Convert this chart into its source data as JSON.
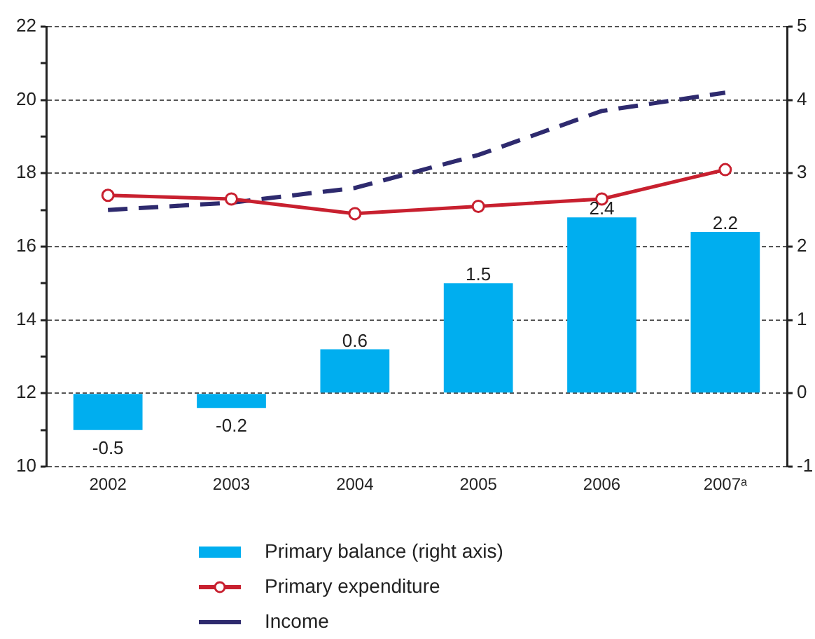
{
  "chart_data": {
    "type": "bar",
    "categories": [
      "2002",
      "2003",
      "2004",
      "2005",
      "2006",
      "2007ᵃ"
    ],
    "series": [
      {
        "name": "Primary balance (right axis)",
        "axis": "y2",
        "color": "#00aeef",
        "values": [
          -0.5,
          -0.2,
          0.6,
          1.5,
          2.4,
          2.2
        ],
        "value_labels": [
          "-0.5",
          "-0.2",
          "0.6",
          "1.5",
          "2.4",
          "2.2"
        ]
      },
      {
        "name": "Primary expenditure",
        "type": "line",
        "color": "#c8202f",
        "marker": "circle",
        "line_style": "solid",
        "values": [
          17.4,
          17.3,
          16.9,
          17.1,
          17.3,
          18.1
        ]
      },
      {
        "name": "Income",
        "type": "line",
        "color": "#2e2a6e",
        "marker": "none",
        "line_style": "dashed",
        "values": [
          17.0,
          17.2,
          17.6,
          18.5,
          19.7,
          20.2
        ]
      }
    ],
    "ylim": [
      10,
      22
    ],
    "yticks": [
      10,
      {
        "value": 11,
        "label": null
      },
      12,
      {
        "value": 13,
        "label": null
      },
      14,
      {
        "value": 15,
        "label": null
      },
      16,
      {
        "value": 17,
        "label": null
      },
      18,
      {
        "value": 19,
        "label": null
      },
      20,
      {
        "value": 21,
        "label": null
      },
      22
    ],
    "y2lim": [
      -1,
      5
    ],
    "y2ticks": [
      -1,
      0,
      1,
      2,
      3,
      4,
      5
    ],
    "grid": "y",
    "legend": "bottom"
  }
}
